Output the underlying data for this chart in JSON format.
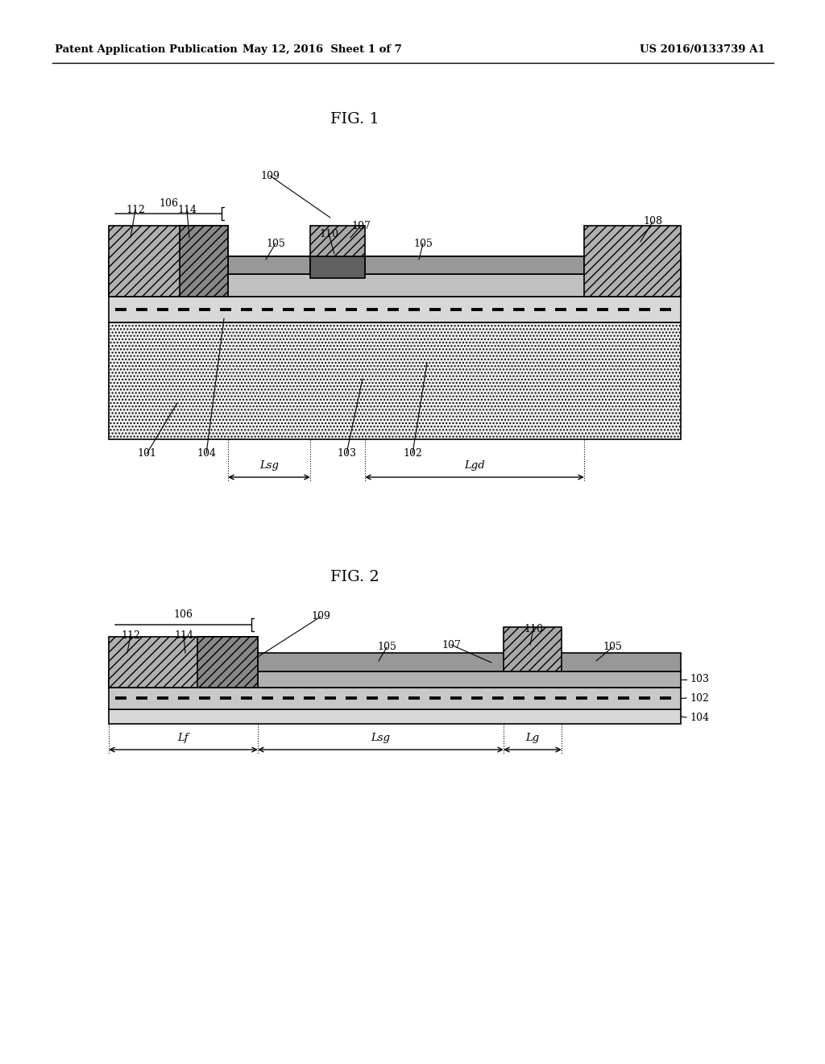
{
  "bg_color": "#ffffff",
  "header_left": "Patent Application Publication",
  "header_center": "May 12, 2016  Sheet 1 of 7",
  "header_right": "US 2016/0133739 A1",
  "fig1_title": "FIG. 1",
  "fig2_title": "FIG. 2",
  "colors": {
    "hatch_dark": "#909090",
    "mid_gray": "#b0b0b0",
    "light_gray": "#d0d0d0",
    "dot_gray": "#e8e8e8",
    "dark_region": "#787878",
    "white": "#ffffff",
    "black": "#000000"
  }
}
